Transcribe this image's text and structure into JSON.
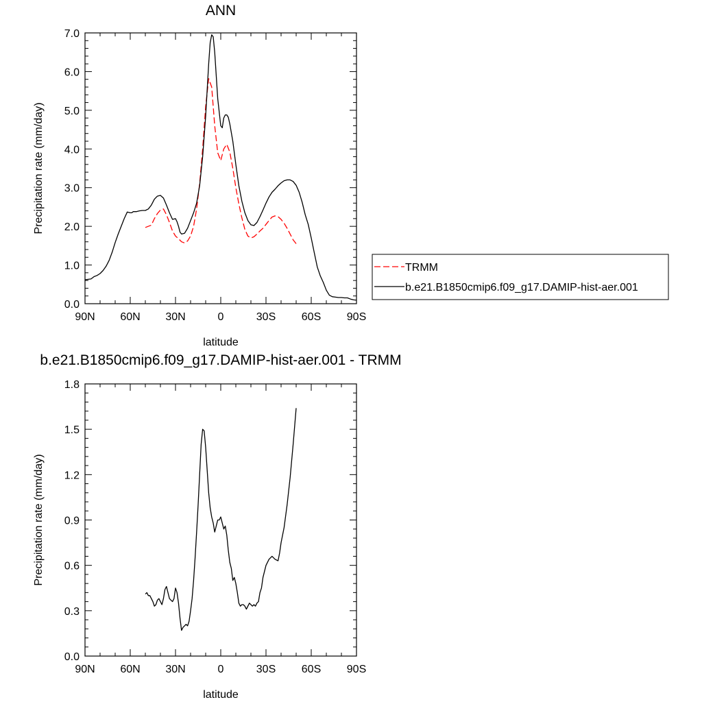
{
  "chart_data": [
    {
      "type": "line",
      "title": "ANN",
      "xlabel": "latitude",
      "ylabel": "Precipitation rate (mm/day)",
      "xlim": [
        -90,
        90
      ],
      "ylim": [
        0.0,
        7.0
      ],
      "x_ticks": [
        {
          "value": -90,
          "label": "90N"
        },
        {
          "value": -60,
          "label": "60N"
        },
        {
          "value": -30,
          "label": "30N"
        },
        {
          "value": 0,
          "label": "0"
        },
        {
          "value": 30,
          "label": "30S"
        },
        {
          "value": 60,
          "label": "60S"
        },
        {
          "value": 90,
          "label": "90S"
        }
      ],
      "y_ticks": [
        {
          "value": 0.0,
          "label": "0.0"
        },
        {
          "value": 1.0,
          "label": "1.0"
        },
        {
          "value": 2.0,
          "label": "2.0"
        },
        {
          "value": 3.0,
          "label": "3.0"
        },
        {
          "value": 4.0,
          "label": "4.0"
        },
        {
          "value": 5.0,
          "label": "5.0"
        },
        {
          "value": 6.0,
          "label": "6.0"
        },
        {
          "value": 7.0,
          "label": "7.0"
        }
      ],
      "legend_position": "right",
      "series": [
        {
          "name": "TRMM",
          "color": "#ff0000",
          "dash": true,
          "x": [
            -50,
            -46,
            -44,
            -42,
            -40,
            -38,
            -36,
            -34,
            -32,
            -30,
            -28,
            -26,
            -24,
            -22,
            -20,
            -18,
            -16,
            -14,
            -12,
            -10,
            -8,
            -6,
            -4,
            -2,
            0,
            2,
            4,
            6,
            8,
            10,
            12,
            14,
            16,
            18,
            20,
            22,
            24,
            26,
            28,
            30,
            32,
            34,
            36,
            38,
            40,
            42,
            44,
            46,
            48,
            50
          ],
          "y": [
            1.97,
            2.03,
            2.2,
            2.33,
            2.42,
            2.45,
            2.3,
            2.1,
            1.88,
            1.75,
            1.68,
            1.6,
            1.57,
            1.62,
            1.75,
            2.0,
            2.45,
            3.1,
            4.0,
            5.1,
            5.82,
            5.6,
            4.6,
            3.9,
            3.7,
            4.0,
            4.12,
            3.92,
            3.5,
            3.0,
            2.58,
            2.22,
            1.92,
            1.75,
            1.7,
            1.73,
            1.8,
            1.88,
            1.95,
            2.05,
            2.15,
            2.24,
            2.27,
            2.25,
            2.18,
            2.08,
            1.95,
            1.8,
            1.65,
            1.55
          ]
        },
        {
          "name": "b.e21.B1850cmip6.f09_g17.DAMIP-hist-aer.001",
          "color": "#000000",
          "dash": false,
          "x": [
            -90,
            -86,
            -84,
            -82,
            -80,
            -78,
            -76,
            -74,
            -72,
            -70,
            -68,
            -66,
            -64,
            -62,
            -60,
            -59,
            -58,
            -56,
            -54,
            -52,
            -50,
            -48,
            -46,
            -44,
            -42,
            -40,
            -38,
            -36,
            -34,
            -32,
            -30,
            -29,
            -28,
            -27,
            -26,
            -24,
            -22,
            -20,
            -18,
            -16,
            -14,
            -12,
            -10,
            -8,
            -7,
            -6,
            -5,
            -4,
            -2,
            0,
            1,
            2,
            3,
            4,
            5,
            6,
            8,
            10,
            12,
            14,
            16,
            18,
            20,
            22,
            24,
            26,
            28,
            30,
            32,
            34,
            36,
            38,
            40,
            42,
            44,
            46,
            48,
            50,
            52,
            54,
            56,
            58,
            60,
            62,
            64,
            66,
            68,
            70,
            72,
            74,
            76,
            78,
            80,
            82,
            84,
            86,
            88,
            90
          ],
          "y": [
            0.62,
            0.64,
            0.7,
            0.73,
            0.78,
            0.86,
            0.97,
            1.12,
            1.33,
            1.58,
            1.8,
            2.0,
            2.2,
            2.37,
            2.35,
            2.35,
            2.38,
            2.38,
            2.4,
            2.41,
            2.41,
            2.45,
            2.55,
            2.7,
            2.78,
            2.8,
            2.73,
            2.55,
            2.35,
            2.18,
            2.2,
            2.12,
            2.0,
            1.85,
            1.8,
            1.82,
            1.95,
            2.15,
            2.35,
            2.6,
            3.05,
            3.8,
            4.85,
            6.2,
            6.75,
            6.95,
            6.9,
            6.5,
            5.3,
            4.6,
            4.55,
            4.8,
            4.88,
            4.88,
            4.82,
            4.65,
            4.2,
            3.6,
            3.05,
            2.65,
            2.35,
            2.15,
            2.04,
            2.02,
            2.1,
            2.25,
            2.42,
            2.6,
            2.76,
            2.88,
            2.96,
            3.05,
            3.12,
            3.18,
            3.2,
            3.2,
            3.16,
            3.06,
            2.88,
            2.62,
            2.3,
            2.05,
            1.7,
            1.32,
            0.95,
            0.72,
            0.55,
            0.35,
            0.22,
            0.18,
            0.17,
            0.16,
            0.16,
            0.15,
            0.15,
            0.12,
            0.1,
            0.09
          ]
        }
      ]
    },
    {
      "type": "line",
      "title": "b.e21.B1850cmip6.f09_g17.DAMIP-hist-aer.001 - TRMM",
      "xlabel": "latitude",
      "ylabel": "Precipitation rate (mm/day)",
      "xlim": [
        -90,
        90
      ],
      "ylim": [
        0.0,
        1.8
      ],
      "x_ticks": [
        {
          "value": -90,
          "label": "90N"
        },
        {
          "value": -60,
          "label": "60N"
        },
        {
          "value": -30,
          "label": "30N"
        },
        {
          "value": 0,
          "label": "0"
        },
        {
          "value": 30,
          "label": "30S"
        },
        {
          "value": 60,
          "label": "60S"
        },
        {
          "value": 90,
          "label": "90S"
        }
      ],
      "y_ticks": [
        {
          "value": 0.0,
          "label": "0.0"
        },
        {
          "value": 0.3,
          "label": "0.3"
        },
        {
          "value": 0.6,
          "label": "0.6"
        },
        {
          "value": 0.9,
          "label": "0.9"
        },
        {
          "value": 1.2,
          "label": "1.2"
        },
        {
          "value": 1.5,
          "label": "1.5"
        },
        {
          "value": 1.8,
          "label": "1.8"
        }
      ],
      "series": [
        {
          "color": "#000000",
          "dash": false,
          "x": [
            -50,
            -49,
            -48,
            -47,
            -46,
            -45,
            -44,
            -43,
            -42,
            -41,
            -40,
            -39,
            -38,
            -37,
            -36,
            -35,
            -34,
            -33,
            -32,
            -31,
            -30,
            -29,
            -28,
            -27,
            -26,
            -25,
            -24,
            -23,
            -22,
            -21,
            -20,
            -19,
            -18,
            -17,
            -16,
            -15,
            -14,
            -13,
            -12,
            -11,
            -10,
            -9,
            -8,
            -7,
            -6,
            -5,
            -4,
            -3,
            -2,
            -1,
            0,
            1,
            2,
            3,
            4,
            5,
            6,
            7,
            8,
            9,
            10,
            11,
            12,
            13,
            14,
            15,
            16,
            17,
            18,
            19,
            20,
            21,
            22,
            23,
            24,
            25,
            26,
            27,
            28,
            30,
            32,
            34,
            36,
            38,
            39,
            40,
            42,
            44,
            46,
            48,
            50
          ],
          "y": [
            0.41,
            0.42,
            0.4,
            0.4,
            0.38,
            0.36,
            0.33,
            0.34,
            0.37,
            0.38,
            0.36,
            0.34,
            0.38,
            0.44,
            0.46,
            0.42,
            0.38,
            0.37,
            0.36,
            0.38,
            0.45,
            0.42,
            0.35,
            0.25,
            0.17,
            0.19,
            0.2,
            0.21,
            0.2,
            0.23,
            0.3,
            0.38,
            0.5,
            0.65,
            0.82,
            1.0,
            1.2,
            1.4,
            1.5,
            1.49,
            1.38,
            1.23,
            1.08,
            0.98,
            0.92,
            0.88,
            0.82,
            0.86,
            0.9,
            0.9,
            0.92,
            0.88,
            0.84,
            0.86,
            0.8,
            0.7,
            0.62,
            0.58,
            0.5,
            0.52,
            0.48,
            0.42,
            0.35,
            0.33,
            0.34,
            0.34,
            0.33,
            0.31,
            0.33,
            0.35,
            0.34,
            0.33,
            0.34,
            0.33,
            0.35,
            0.36,
            0.42,
            0.45,
            0.52,
            0.6,
            0.64,
            0.66,
            0.64,
            0.63,
            0.68,
            0.75,
            0.85,
            1.0,
            1.18,
            1.4,
            1.64
          ]
        }
      ]
    }
  ]
}
